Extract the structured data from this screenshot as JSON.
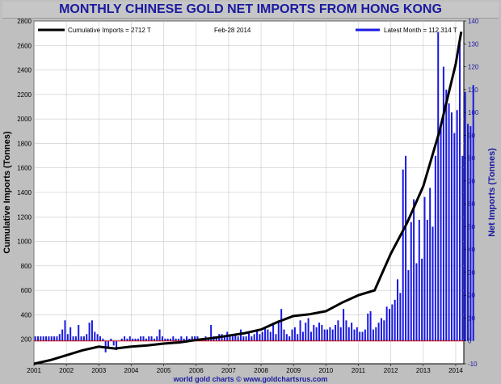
{
  "title": "MONTHLY CHINESE GOLD NET IMPORTS FROM HONG KONG",
  "credit": "world gold charts © www.goldchartsrus.com",
  "chart_data": {
    "type": "bar",
    "date_label": "Feb-28 2014",
    "legend": {
      "line_label": "Cumulative Imports = 2712 T",
      "bar_label": "Latest Month = 112.314 T"
    },
    "y_left": {
      "label": "Cumulative Imports (Tonnes)",
      "min": 0,
      "max": 2800,
      "ticks": [
        200,
        400,
        600,
        800,
        1000,
        1200,
        1400,
        1600,
        1800,
        2000,
        2200,
        2400,
        2600,
        2800
      ],
      "color": "#000000"
    },
    "y_right": {
      "label": "Net Imports (Tonnes)",
      "min": -10,
      "max": 140,
      "ticks": [
        -10,
        0,
        10,
        20,
        30,
        40,
        50,
        60,
        70,
        80,
        90,
        100,
        110,
        120,
        130,
        140
      ],
      "color": "#1a1aa0"
    },
    "x_axis": {
      "min": 2001.0,
      "max": 2014.25,
      "ticks": [
        "2001",
        "2002",
        "2003",
        "2004",
        "2005",
        "2006",
        "2007",
        "2008",
        "2009",
        "2010",
        "2011",
        "2012",
        "2013",
        "2014"
      ]
    },
    "grid": true,
    "series": [
      {
        "name": "Net Imports (monthly, tonnes)",
        "type": "bar",
        "color": "#1a1ae0",
        "start": "2001-01",
        "values": [
          2,
          2,
          2,
          2,
          2,
          2,
          2,
          2,
          2,
          3,
          5,
          9,
          3,
          6,
          2,
          2,
          7,
          2,
          2,
          3,
          8,
          9,
          4,
          3,
          2,
          1,
          -5,
          -3,
          1,
          -2,
          -4,
          0,
          1,
          2,
          1,
          2,
          1,
          1,
          1,
          2,
          2,
          1,
          2,
          2,
          1,
          2,
          5,
          2,
          1,
          1,
          1,
          2,
          1,
          1,
          2,
          1,
          2,
          1,
          2,
          2,
          2,
          1,
          1,
          2,
          1,
          7,
          2,
          2,
          3,
          3,
          2,
          4,
          2,
          2,
          3,
          2,
          5,
          2,
          2,
          4,
          2,
          3,
          5,
          3,
          4,
          6,
          5,
          4,
          8,
          3,
          9,
          14,
          5,
          3,
          2,
          5,
          6,
          3,
          9,
          4,
          8,
          10,
          4,
          7,
          6,
          8,
          7,
          5,
          5,
          6,
          5,
          7,
          9,
          6,
          14,
          9,
          6,
          8,
          5,
          6,
          4,
          4,
          5,
          12,
          13,
          5,
          6,
          8,
          10,
          9,
          15,
          14,
          16,
          18,
          27,
          21,
          75,
          81,
          31,
          52,
          62,
          34,
          53,
          36,
          63,
          53,
          67,
          50,
          81,
          135,
          94,
          120,
          110,
          104,
          100,
          91,
          101,
          131,
          81,
          109,
          95,
          94,
          112
        ]
      },
      {
        "name": "Cumulative Imports (tonnes)",
        "type": "line",
        "color": "#000000",
        "x": [
          2001.0,
          2001.5,
          2002.0,
          2002.5,
          2003.0,
          2003.5,
          2004.0,
          2004.5,
          2005.0,
          2005.5,
          2006.0,
          2006.5,
          2007.0,
          2007.5,
          2008.0,
          2008.5,
          2009.0,
          2009.5,
          2010.0,
          2010.5,
          2011.0,
          2011.5,
          2011.75,
          2012.0,
          2012.5,
          2013.0,
          2013.5,
          2014.0,
          2014.17
        ],
        "y": [
          0,
          30,
          70,
          110,
          140,
          125,
          140,
          150,
          165,
          175,
          195,
          210,
          230,
          250,
          280,
          340,
          390,
          405,
          430,
          500,
          560,
          600,
          750,
          900,
          1150,
          1450,
          1900,
          2450,
          2712
        ]
      }
    ]
  }
}
